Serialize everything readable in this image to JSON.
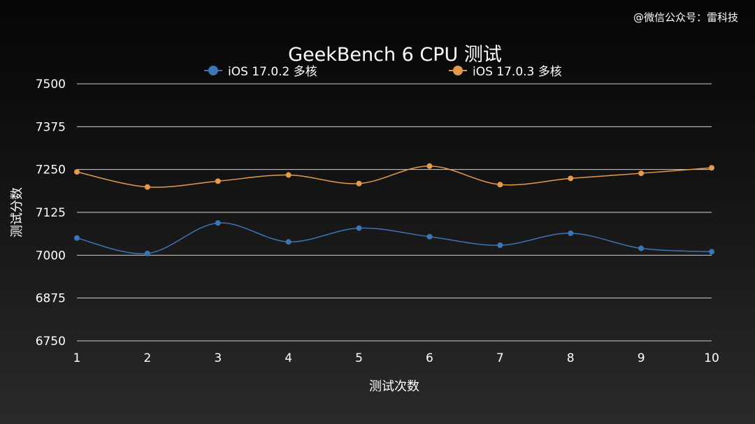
{
  "watermark": "@微信公众号：雷科技",
  "chart_data": {
    "type": "line",
    "title": "GeekBench 6 CPU 测试",
    "xlabel": "测试次数",
    "ylabel": "测试分数",
    "x": [
      1,
      2,
      3,
      4,
      5,
      6,
      7,
      8,
      9,
      10
    ],
    "ylim": [
      6750,
      7500
    ],
    "yticks": [
      6750,
      6875,
      7000,
      7125,
      7250,
      7375,
      7500
    ],
    "grid": true,
    "legend_position": "top",
    "series": [
      {
        "name": "iOS 17.0.2 多核",
        "color": "#3d74b3",
        "values": [
          7050,
          7005,
          7094,
          7039,
          7079,
          7054,
          7029,
          7064,
          7020,
          7010
        ]
      },
      {
        "name": "iOS 17.0.3 多核",
        "color": "#e39a4e",
        "values": [
          7243,
          7199,
          7216,
          7234,
          7209,
          7260,
          7206,
          7224,
          7239,
          7255
        ]
      }
    ]
  }
}
